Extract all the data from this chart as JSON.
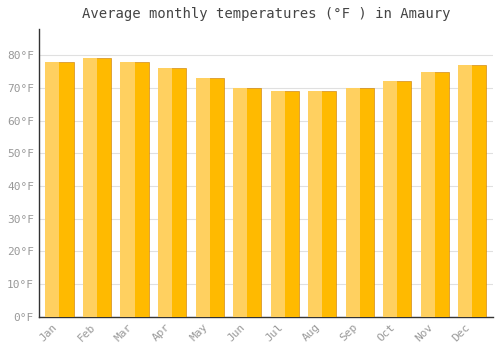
{
  "title": "Average monthly temperatures (°F ) in Amaury",
  "months": [
    "Jan",
    "Feb",
    "Mar",
    "Apr",
    "May",
    "Jun",
    "Jul",
    "Aug",
    "Sep",
    "Oct",
    "Nov",
    "Dec"
  ],
  "values": [
    78,
    79,
    78,
    76,
    73,
    70,
    69,
    69,
    70,
    72,
    75,
    77
  ],
  "bar_color_face": "#FFBA00",
  "bar_color_light": "#FFD060",
  "bar_color_dark": "#E89000",
  "background_color": "#FFFFFF",
  "grid_color": "#E0E0E0",
  "ylim": [
    0,
    88
  ],
  "yticks": [
    0,
    10,
    20,
    30,
    40,
    50,
    60,
    70,
    80
  ],
  "ytick_labels": [
    "0°F",
    "10°F",
    "20°F",
    "30°F",
    "40°F",
    "50°F",
    "60°F",
    "70°F",
    "80°F"
  ],
  "title_fontsize": 10,
  "tick_fontsize": 8,
  "tick_color": "#999999",
  "title_color": "#444444",
  "bar_width": 0.75
}
